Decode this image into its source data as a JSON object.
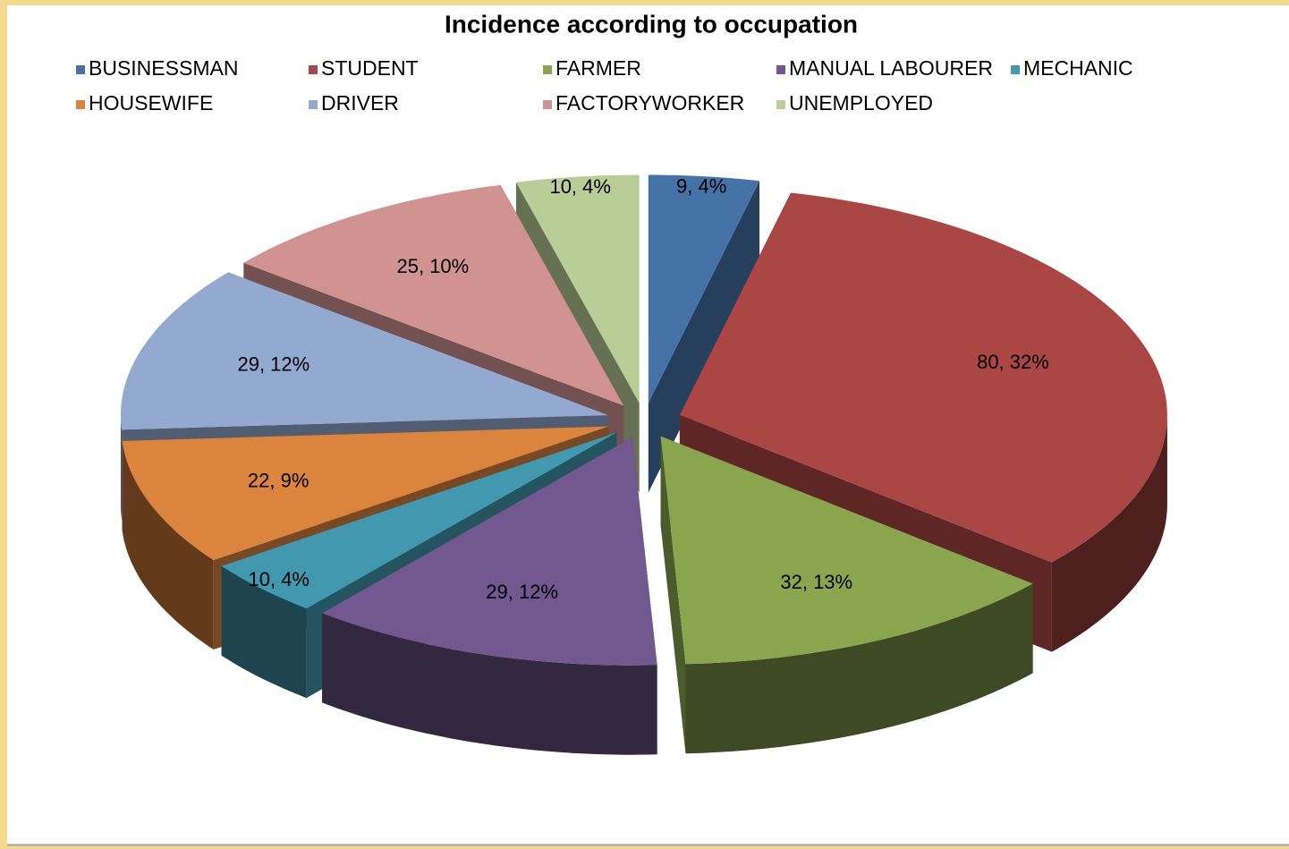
{
  "chart_data": {
    "type": "pie",
    "title": "Incidence according to occupation",
    "categories": [
      "BUSINESSMAN",
      "STUDENT",
      "FARMER",
      "MANUAL LABOURER",
      "MECHANIC",
      "HOUSEWIFE",
      "DRIVER",
      "FACTORYWORKER",
      "UNEMPLOYED"
    ],
    "values": [
      9,
      80,
      32,
      29,
      10,
      22,
      29,
      25,
      10
    ],
    "value_labels": [
      "9, 4%",
      "80, 32%",
      "32, 13%",
      "29, 12%",
      "10, 4%",
      "22, 9%",
      "29, 12%",
      "25, 10%",
      "10, 4%"
    ],
    "colors": [
      "#4572a7",
      "#aa4643",
      "#89a54e",
      "#71588f",
      "#4198af",
      "#db843d",
      "#93a9cf",
      "#d19392",
      "#b9cd96"
    ],
    "legend": "top"
  }
}
